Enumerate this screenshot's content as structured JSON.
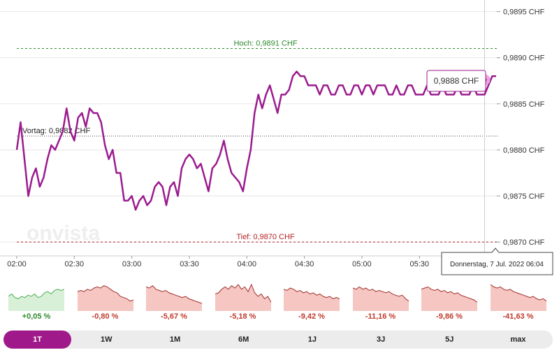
{
  "chart_data": {
    "type": "line",
    "currency": "CHF",
    "x_ticks": [
      "02:00",
      "02:30",
      "03:00",
      "03:30",
      "04:00",
      "04:30",
      "05:00",
      "05:30"
    ],
    "y_ticks": [
      "0,9870 CHF",
      "0,9875 CHF",
      "0,9880 CHF",
      "0,9885 CHF",
      "0,9890 CHF",
      "0,9895 CHF"
    ],
    "y_tick_values": [
      0.987,
      0.9875,
      0.988,
      0.9885,
      0.989,
      0.9895
    ],
    "ylim": [
      0.98685,
      0.98955
    ],
    "xlim_minutes": [
      0,
      250
    ],
    "time_start": "02:00",
    "times": [
      0,
      2,
      4,
      6,
      8,
      10,
      12,
      14,
      16,
      18,
      20,
      22,
      24,
      26,
      28,
      30,
      32,
      34,
      36,
      38,
      40,
      42,
      44,
      46,
      48,
      50,
      52,
      54,
      56,
      58,
      60,
      62,
      64,
      66,
      68,
      70,
      72,
      74,
      76,
      78,
      80,
      82,
      84,
      86,
      88,
      90,
      92,
      94,
      96,
      98,
      100,
      102,
      104,
      106,
      108,
      110,
      112,
      114,
      116,
      118,
      120,
      122,
      124,
      126,
      128,
      130,
      132,
      134,
      136,
      138,
      140,
      142,
      144,
      146,
      148,
      150,
      152,
      154,
      156,
      158,
      160,
      162,
      164,
      166,
      168,
      170,
      172,
      174,
      176,
      178,
      180,
      182,
      184,
      186,
      188,
      190,
      192,
      194,
      196,
      198,
      200,
      202,
      204,
      206,
      208,
      210,
      212,
      214,
      216,
      218,
      220,
      222,
      224,
      226,
      228,
      230,
      232,
      234,
      236,
      238,
      240,
      242,
      244,
      246,
      248,
      250
    ],
    "values": [
      0.988,
      0.9883,
      0.9879,
      0.9875,
      0.9877,
      0.9878,
      0.9876,
      0.9877,
      0.9879,
      0.98805,
      0.988,
      0.9881,
      0.9882,
      0.98845,
      0.9882,
      0.9881,
      0.98835,
      0.9884,
      0.98825,
      0.98845,
      0.9884,
      0.9884,
      0.9883,
      0.98805,
      0.9879,
      0.988,
      0.98775,
      0.98775,
      0.98745,
      0.98745,
      0.9875,
      0.98735,
      0.98745,
      0.9875,
      0.9874,
      0.98745,
      0.9876,
      0.98765,
      0.9876,
      0.9874,
      0.9876,
      0.98765,
      0.9875,
      0.9878,
      0.9879,
      0.98795,
      0.9879,
      0.9878,
      0.98785,
      0.9877,
      0.98755,
      0.9878,
      0.98785,
      0.98795,
      0.9881,
      0.9879,
      0.98775,
      0.9877,
      0.98765,
      0.98755,
      0.9878,
      0.988,
      0.9884,
      0.9886,
      0.98845,
      0.9886,
      0.9887,
      0.98855,
      0.9884,
      0.9886,
      0.9886,
      0.98865,
      0.9888,
      0.98885,
      0.9888,
      0.9888,
      0.9887,
      0.9887,
      0.9887,
      0.9886,
      0.9887,
      0.9887,
      0.9886,
      0.9886,
      0.9887,
      0.9887,
      0.9886,
      0.9886,
      0.9887,
      0.9887,
      0.9886,
      0.9887,
      0.9887,
      0.9886,
      0.9887,
      0.9887,
      0.9887,
      0.9886,
      0.9886,
      0.9887,
      0.9886,
      0.9886,
      0.9887,
      0.9887,
      0.9886,
      0.9886,
      0.9886,
      0.9887,
      0.9886,
      0.9886,
      0.9886,
      0.9887,
      0.9886,
      0.9886,
      0.9886,
      0.9887,
      0.9886,
      0.9886,
      0.9886,
      0.9887,
      0.9886,
      0.9886,
      0.9886,
      0.9887,
      0.9888,
      0.9888
    ],
    "high": {
      "value": 0.9891,
      "label": "Hoch: 0,9891 CHF"
    },
    "low": {
      "value": 0.987,
      "label": "Tief: 0,9870 CHF"
    },
    "previous_close": {
      "value": 0.98815,
      "label": "Vortag: 0,9882 CHF"
    },
    "cursor": {
      "minutes": 244,
      "value": 0.98876,
      "price_label": "0,9888 CHF",
      "date_label": "Donnerstag, 7 Jul. 2022 06:04"
    },
    "watermark": "onvista",
    "line_color": "#9b1b8e"
  },
  "periods": [
    {
      "label": "1T",
      "change": "+0,05 %",
      "positive": true,
      "active": true,
      "spark": [
        0.5,
        0.4,
        0.55,
        0.6,
        0.5,
        0.55,
        0.45,
        0.5,
        0.4,
        0.55,
        0.5,
        0.35,
        0.3,
        0.4,
        0.25,
        0.2,
        0.25,
        0.2
      ]
    },
    {
      "label": "1W",
      "change": "-0,80 %",
      "positive": false,
      "active": false,
      "spark": [
        0.3,
        0.25,
        0.3,
        0.2,
        0.25,
        0.15,
        0.1,
        0.15,
        0.05,
        0.1,
        0.2,
        0.3,
        0.35,
        0.5,
        0.55,
        0.6,
        0.7,
        0.65
      ]
    },
    {
      "label": "1M",
      "change": "-5,67 %",
      "positive": false,
      "active": false,
      "spark": [
        0.1,
        0.15,
        0.05,
        0.2,
        0.25,
        0.3,
        0.25,
        0.35,
        0.4,
        0.45,
        0.5,
        0.55,
        0.5,
        0.6,
        0.65,
        0.7,
        0.75,
        0.8
      ]
    },
    {
      "label": "6M",
      "change": "-5,18 %",
      "positive": false,
      "active": false,
      "spark": [
        0.4,
        0.35,
        0.2,
        0.1,
        0.2,
        0.05,
        0.15,
        0.0,
        0.2,
        0.1,
        0.3,
        0.0,
        0.35,
        0.5,
        0.4,
        0.6,
        0.5,
        0.75
      ]
    },
    {
      "label": "1J",
      "change": "-9,42 %",
      "positive": false,
      "active": false,
      "spark": [
        0.2,
        0.25,
        0.15,
        0.2,
        0.3,
        0.25,
        0.35,
        0.3,
        0.4,
        0.35,
        0.45,
        0.4,
        0.5,
        0.55,
        0.5,
        0.6,
        0.55,
        0.6
      ]
    },
    {
      "label": "3J",
      "change": "-11,16 %",
      "positive": false,
      "active": false,
      "spark": [
        0.15,
        0.2,
        0.1,
        0.2,
        0.15,
        0.25,
        0.2,
        0.3,
        0.25,
        0.3,
        0.35,
        0.3,
        0.4,
        0.45,
        0.5,
        0.45,
        0.6,
        0.7
      ]
    },
    {
      "label": "5J",
      "change": "-9,86 %",
      "positive": false,
      "active": false,
      "spark": [
        0.2,
        0.15,
        0.1,
        0.2,
        0.25,
        0.2,
        0.3,
        0.25,
        0.35,
        0.3,
        0.4,
        0.35,
        0.45,
        0.5,
        0.55,
        0.6,
        0.65,
        0.75
      ]
    },
    {
      "label": "max",
      "change": "-41,63 %",
      "positive": false,
      "active": false,
      "spark": [
        0.0,
        0.1,
        0.15,
        0.1,
        0.2,
        0.25,
        0.2,
        0.3,
        0.35,
        0.4,
        0.45,
        0.5,
        0.55,
        0.5,
        0.6,
        0.65,
        0.6,
        0.7
      ]
    }
  ],
  "colors": {
    "positive_line": "#4caf50",
    "positive_fill": "#d8efd8",
    "negative_line": "#a0302a",
    "negative_fill": "#f5c6c2",
    "accent": "#a0198a"
  }
}
